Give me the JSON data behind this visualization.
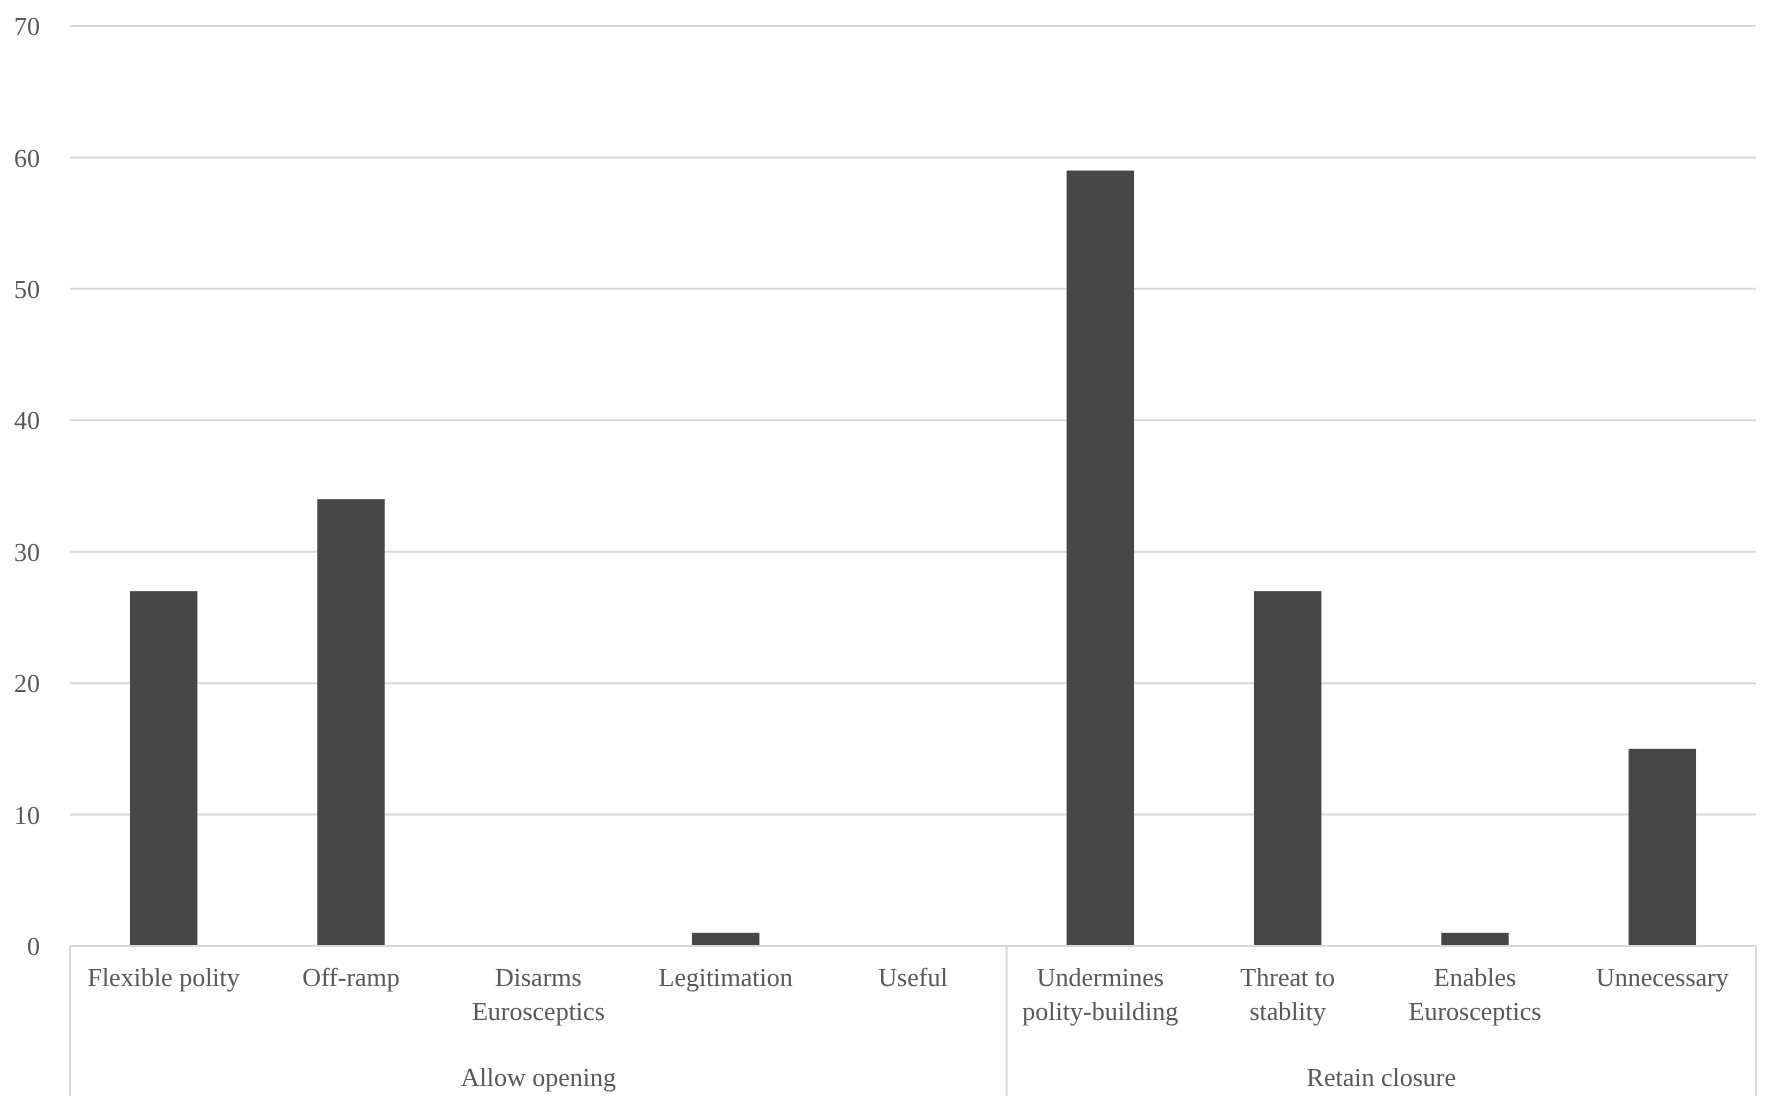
{
  "chart_data": {
    "type": "bar",
    "categories": [
      "Flexible polity",
      "Off-ramp",
      "Disarms Eurosceptics",
      "Legitimation",
      "Useful",
      "Undermines polity-building",
      "Threat to stablity",
      "Enables Eurosceptics",
      "Unnecessary"
    ],
    "values": [
      27,
      34,
      0,
      1,
      0,
      59,
      27,
      1,
      15
    ],
    "color": "#474747",
    "ylim": [
      0,
      70
    ],
    "yticks": [
      0,
      10,
      20,
      30,
      40,
      50,
      60,
      70
    ],
    "grid": "y",
    "annotations": [
      "Allow opening",
      "Retain closure"
    ]
  }
}
